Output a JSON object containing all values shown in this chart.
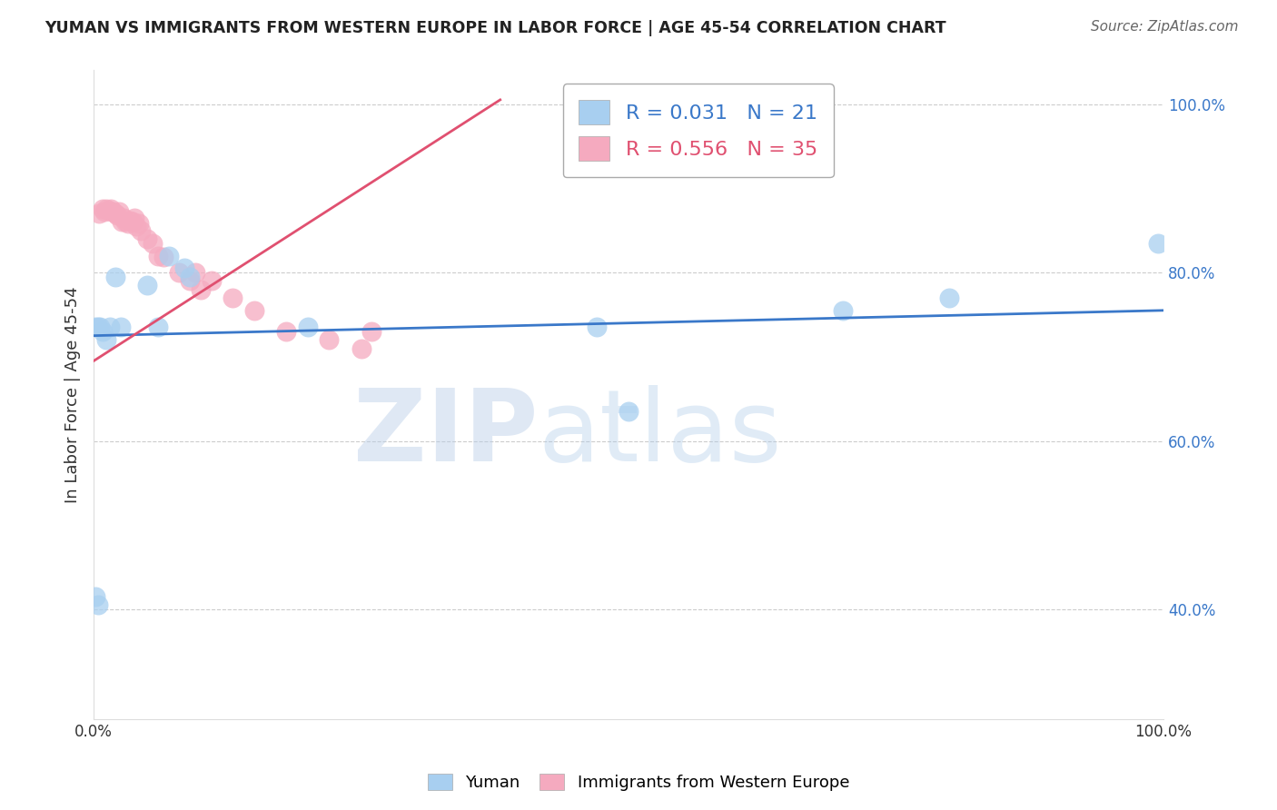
{
  "title": "YUMAN VS IMMIGRANTS FROM WESTERN EUROPE IN LABOR FORCE | AGE 45-54 CORRELATION CHART",
  "source": "Source: ZipAtlas.com",
  "xlabel": "",
  "ylabel": "In Labor Force | Age 45-54",
  "xlim": [
    0.0,
    1.0
  ],
  "ylim": [
    0.27,
    1.04
  ],
  "yticks": [
    0.4,
    0.6,
    0.8,
    1.0
  ],
  "ytick_labels": [
    "40.0%",
    "60.0%",
    "80.0%",
    "100.0%"
  ],
  "xticks": [
    0.0,
    0.1,
    0.2,
    0.3,
    0.4,
    0.5,
    0.6,
    0.7,
    0.8,
    0.9,
    1.0
  ],
  "xtick_labels": [
    "0.0%",
    "",
    "",
    "",
    "",
    "",
    "",
    "",
    "",
    "",
    "100.0%"
  ],
  "blue_R": 0.031,
  "blue_N": 21,
  "pink_R": 0.556,
  "pink_N": 35,
  "blue_color": "#A8CFF0",
  "pink_color": "#F5AABF",
  "blue_line_color": "#3A78C9",
  "pink_line_color": "#E05070",
  "blue_x": [
    0.002,
    0.004,
    0.006,
    0.008,
    0.012,
    0.015,
    0.02,
    0.025,
    0.05,
    0.06,
    0.07,
    0.085,
    0.09,
    0.2,
    0.47,
    0.5,
    0.7,
    0.8,
    0.995,
    0.002,
    0.004
  ],
  "blue_y": [
    0.735,
    0.735,
    0.735,
    0.73,
    0.72,
    0.735,
    0.795,
    0.735,
    0.785,
    0.735,
    0.82,
    0.805,
    0.795,
    0.735,
    0.735,
    0.635,
    0.755,
    0.77,
    0.835,
    0.415,
    0.405
  ],
  "pink_x": [
    0.005,
    0.008,
    0.01,
    0.012,
    0.014,
    0.016,
    0.018,
    0.02,
    0.022,
    0.024,
    0.026,
    0.028,
    0.03,
    0.032,
    0.034,
    0.036,
    0.038,
    0.04,
    0.042,
    0.044,
    0.05,
    0.055,
    0.06,
    0.065,
    0.08,
    0.09,
    0.095,
    0.1,
    0.11,
    0.13,
    0.15,
    0.18,
    0.22,
    0.25,
    0.26
  ],
  "pink_y": [
    0.87,
    0.875,
    0.872,
    0.875,
    0.873,
    0.875,
    0.872,
    0.87,
    0.868,
    0.872,
    0.86,
    0.865,
    0.86,
    0.858,
    0.862,
    0.86,
    0.865,
    0.855,
    0.858,
    0.85,
    0.84,
    0.835,
    0.82,
    0.818,
    0.8,
    0.79,
    0.8,
    0.78,
    0.79,
    0.77,
    0.755,
    0.73,
    0.72,
    0.71,
    0.73
  ],
  "blue_trend_x": [
    0.0,
    1.0
  ],
  "blue_trend_y": [
    0.725,
    0.755
  ],
  "pink_trend_x": [
    0.0,
    0.38
  ],
  "pink_trend_y": [
    0.695,
    1.005
  ],
  "watermark_zip": "ZIP",
  "watermark_atlas": "atlas",
  "legend_blue_label": "R = 0.031   N = 21",
  "legend_pink_label": "R = 0.556   N = 35"
}
